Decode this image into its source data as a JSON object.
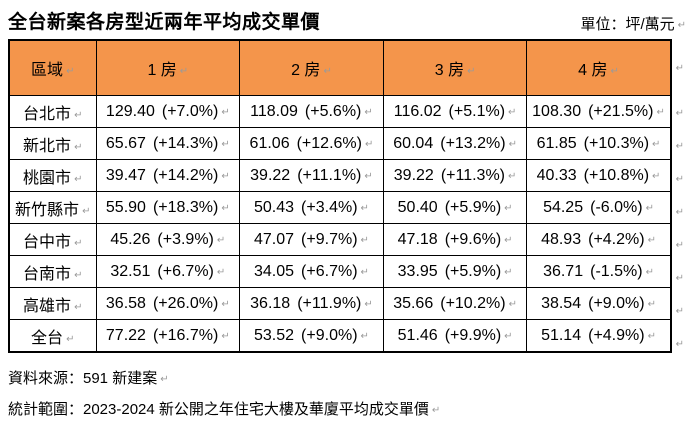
{
  "title": "全台新案各房型近兩年平均成交單價",
  "unit_label": "單位：坪/萬元",
  "marks": {
    "paragraph": "↵"
  },
  "colors": {
    "header_bg": "#F4954B",
    "border": "#000000",
    "mark_gray": "#9a9a9a"
  },
  "table": {
    "columns": [
      "區域",
      "1 房",
      "2 房",
      "3 房",
      "4 房"
    ],
    "rows": [
      {
        "region": "台北市",
        "cells": [
          {
            "price": "129.40",
            "change": "(+7.0%)"
          },
          {
            "price": "118.09",
            "change": "(+5.6%)"
          },
          {
            "price": "116.02",
            "change": "(+5.1%)"
          },
          {
            "price": "108.30",
            "change": "(+21.5%)"
          }
        ]
      },
      {
        "region": "新北市",
        "cells": [
          {
            "price": "65.67",
            "change": "(+14.3%)"
          },
          {
            "price": "61.06",
            "change": "(+12.6%)"
          },
          {
            "price": "60.04",
            "change": "(+13.2%)"
          },
          {
            "price": "61.85",
            "change": "(+10.3%)"
          }
        ]
      },
      {
        "region": "桃園市",
        "cells": [
          {
            "price": "39.47",
            "change": "(+14.2%)"
          },
          {
            "price": "39.22",
            "change": "(+11.1%)"
          },
          {
            "price": "39.22",
            "change": "(+11.3%)"
          },
          {
            "price": "40.33",
            "change": "(+10.8%)"
          }
        ]
      },
      {
        "region": "新竹縣市",
        "cells": [
          {
            "price": "55.90",
            "change": "(+18.3%)"
          },
          {
            "price": "50.43",
            "change": "(+3.4%)"
          },
          {
            "price": "50.40",
            "change": "(+5.9%)"
          },
          {
            "price": "54.25",
            "change": "(-6.0%)"
          }
        ]
      },
      {
        "region": "台中市",
        "cells": [
          {
            "price": "45.26",
            "change": "(+3.9%)"
          },
          {
            "price": "47.07",
            "change": "(+9.7%)"
          },
          {
            "price": "47.18",
            "change": "(+9.6%)"
          },
          {
            "price": "48.93",
            "change": "(+4.2%)"
          }
        ]
      },
      {
        "region": "台南市",
        "cells": [
          {
            "price": "32.51",
            "change": "(+6.7%)"
          },
          {
            "price": "34.05",
            "change": "(+6.7%)"
          },
          {
            "price": "33.95",
            "change": "(+5.9%)"
          },
          {
            "price": "36.71",
            "change": "(-1.5%)"
          }
        ]
      },
      {
        "region": "高雄市",
        "cells": [
          {
            "price": "36.58",
            "change": "(+26.0%)"
          },
          {
            "price": "36.18",
            "change": "(+11.9%)"
          },
          {
            "price": "35.66",
            "change": "(+10.2%)"
          },
          {
            "price": "38.54",
            "change": "(+9.0%)"
          }
        ]
      },
      {
        "region": "全台",
        "cells": [
          {
            "price": "77.22",
            "change": "(+16.7%)"
          },
          {
            "price": "53.52",
            "change": "(+9.0%)"
          },
          {
            "price": "51.46",
            "change": "(+9.9%)"
          },
          {
            "price": "51.14",
            "change": "(+4.9%)"
          }
        ]
      }
    ]
  },
  "footer": {
    "source": "資料來源：591 新建案",
    "scope": "統計範圍：2023-2024 新公開之年住宅大樓及華廈平均成交單價"
  }
}
